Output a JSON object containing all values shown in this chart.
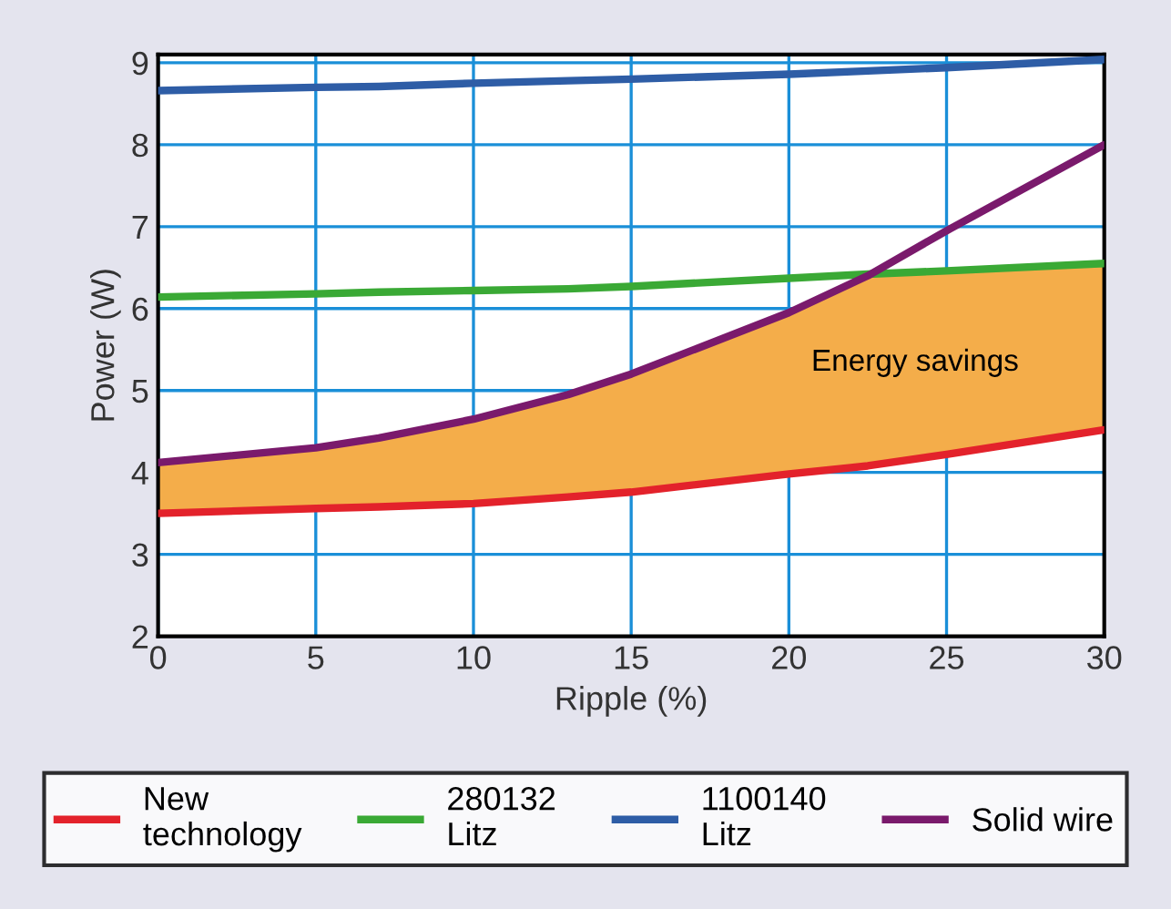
{
  "chart_data": {
    "type": "line",
    "xlabel": "Ripple (%)",
    "ylabel": "Power (W)",
    "x": [
      0,
      5,
      7,
      10,
      13,
      15,
      20,
      22.5,
      25,
      30
    ],
    "series": [
      {
        "name": "New\ntechnology",
        "color": "#e3222b",
        "values": [
          3.5,
          3.56,
          3.58,
          3.62,
          3.7,
          3.76,
          3.98,
          4.08,
          4.22,
          4.52
        ],
        "lower": [
          3.5,
          3.56,
          3.58,
          3.62,
          3.7,
          3.76,
          3.98,
          4.08,
          4.22,
          4.52
        ],
        "upper": [
          4.12,
          4.3,
          4.42,
          4.65,
          4.95,
          5.2,
          5.95,
          6.4,
          6.46,
          6.55
        ]
      },
      {
        "name": "280132\nLitz",
        "color": "#3aa935",
        "values": [
          6.14,
          6.18,
          6.2,
          6.22,
          6.24,
          6.27,
          6.37,
          6.42,
          6.46,
          6.55
        ]
      },
      {
        "name": "1100140\nLitz",
        "color": "#2e5da6",
        "values": [
          8.66,
          8.7,
          8.71,
          8.75,
          8.78,
          8.8,
          8.86,
          8.9,
          8.94,
          9.04
        ]
      },
      {
        "name": "Solid wire",
        "color": "#7a1a6c",
        "values": [
          4.12,
          4.3,
          4.42,
          4.65,
          4.95,
          5.2,
          5.95,
          6.4,
          6.95,
          8.0
        ]
      }
    ],
    "xlim": [
      0,
      30
    ],
    "ylim": [
      2,
      9.1
    ],
    "xticks": [
      0,
      5,
      10,
      15,
      20,
      25,
      30
    ],
    "yticks": [
      2,
      3,
      4,
      5,
      6,
      7,
      8,
      9
    ],
    "grid": true,
    "legend": "bottom",
    "line_style": "solid",
    "marker": "none",
    "annotations": [
      "Energy savings"
    ]
  }
}
